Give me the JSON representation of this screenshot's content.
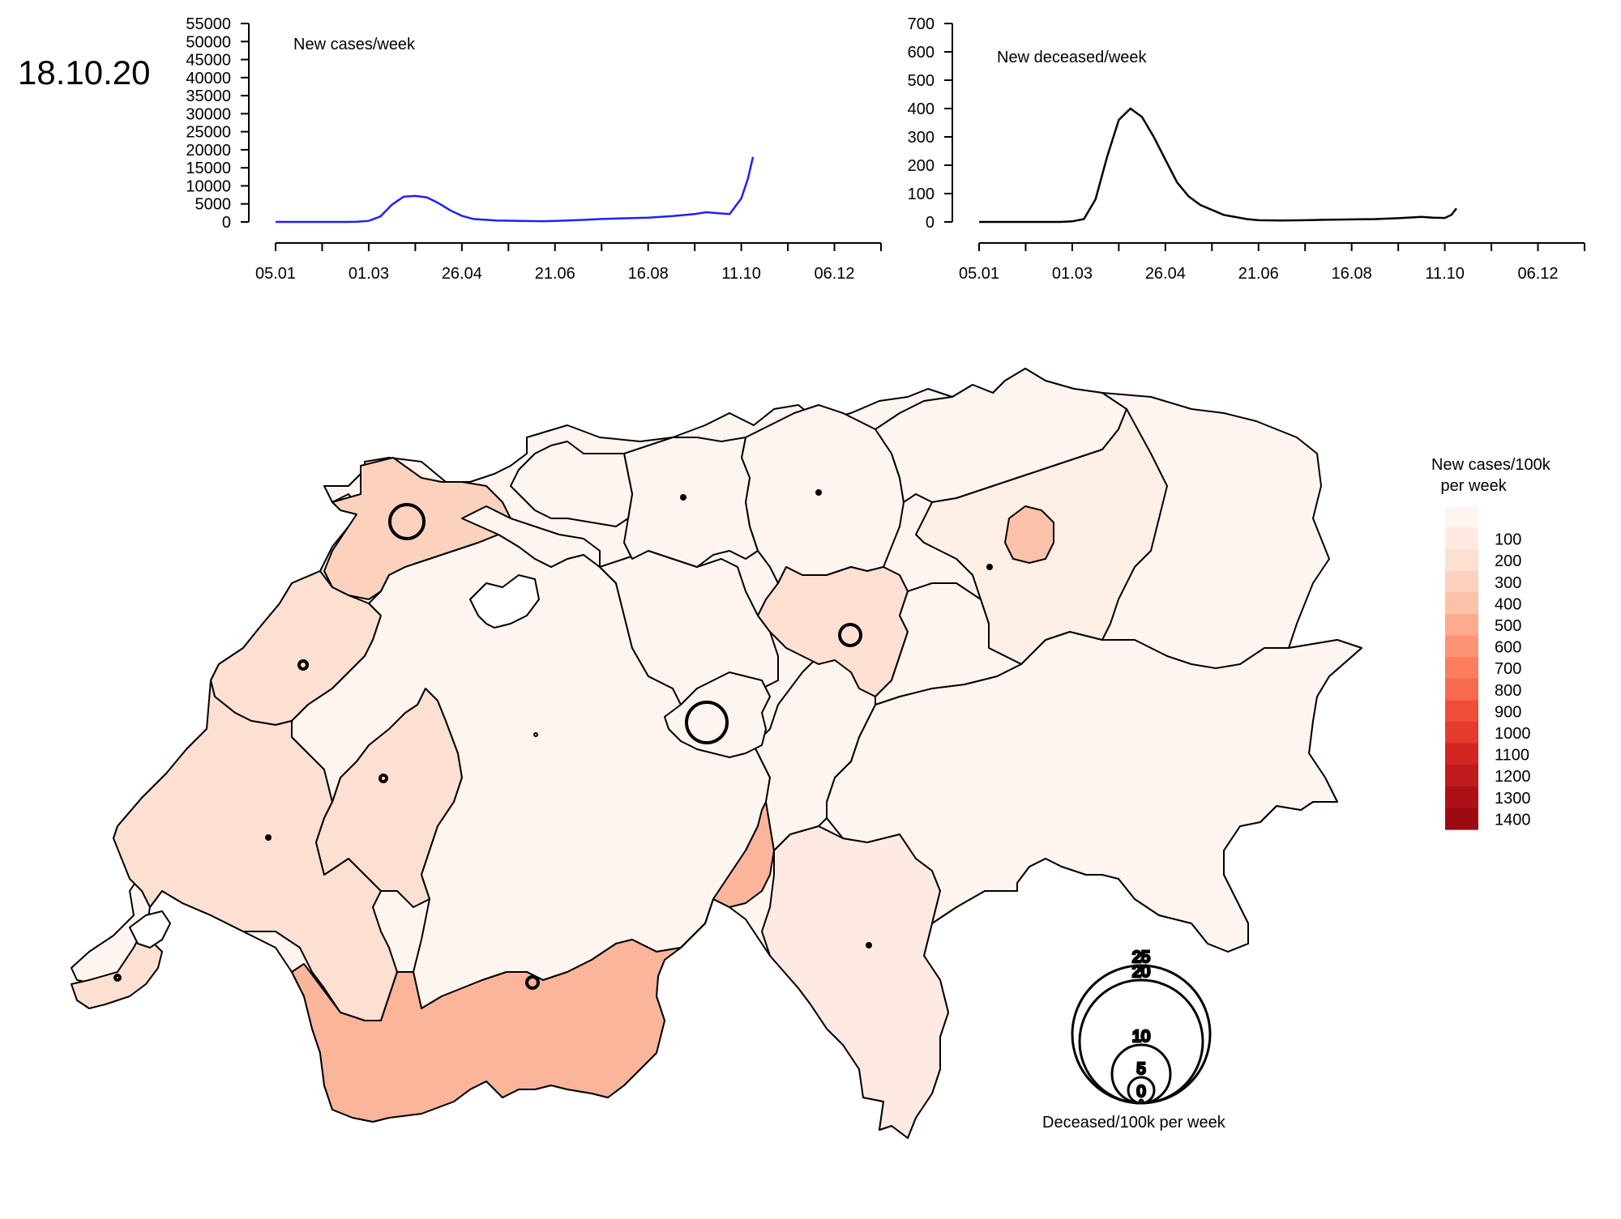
{
  "date": "18.10.20",
  "charts": [
    {
      "id": "cases",
      "title": "New cases/week",
      "line_color": "#1f1fff",
      "y_ticks": [
        0,
        5000,
        10000,
        15000,
        20000,
        25000,
        30000,
        35000,
        40000,
        45000,
        50000,
        55000
      ],
      "ylim": [
        0,
        55000
      ],
      "x_ticks": [
        "05.01",
        "01.03",
        "26.04",
        "21.06",
        "16.08",
        "11.10",
        "06.12"
      ]
    },
    {
      "id": "deaths",
      "title": "New deceased/week",
      "line_color": "#000000",
      "y_ticks": [
        0,
        100,
        200,
        300,
        400,
        500,
        600,
        700
      ],
      "ylim": [
        0,
        700
      ],
      "x_ticks": [
        "05.01",
        "01.03",
        "26.04",
        "21.06",
        "16.08",
        "11.10",
        "06.12"
      ]
    }
  ],
  "chart_data": [
    {
      "type": "line",
      "title": "New cases/week",
      "xlabel": "",
      "ylabel": "",
      "x": [
        "05.01",
        "19.01",
        "02.02",
        "16.02",
        "23.02",
        "01.03",
        "08.03",
        "15.03",
        "22.03",
        "29.03",
        "05.04",
        "12.04",
        "19.04",
        "26.04",
        "03.05",
        "17.05",
        "31.05",
        "14.06",
        "21.06",
        "05.07",
        "19.07",
        "02.08",
        "16.08",
        "30.08",
        "13.09",
        "20.09",
        "27.09",
        "04.10",
        "11.10",
        "15.10",
        "18.10"
      ],
      "series": [
        {
          "values": [
            0,
            0,
            0,
            0,
            50,
            300,
            1500,
            4800,
            7000,
            7200,
            6800,
            5200,
            3200,
            1700,
            800,
            400,
            300,
            200,
            300,
            500,
            800,
            1000,
            1200,
            1600,
            2200,
            2700,
            2400,
            2200,
            6500,
            12000,
            18000
          ]
        }
      ],
      "ylim": [
        0,
        55000
      ]
    },
    {
      "type": "line",
      "title": "New deceased/week",
      "xlabel": "",
      "ylabel": "",
      "x": [
        "05.01",
        "02.02",
        "23.02",
        "01.03",
        "08.03",
        "15.03",
        "22.03",
        "29.03",
        "05.04",
        "12.04",
        "19.04",
        "26.04",
        "03.05",
        "10.05",
        "17.05",
        "31.05",
        "14.06",
        "21.06",
        "05.07",
        "19.07",
        "02.08",
        "16.08",
        "30.08",
        "13.09",
        "27.09",
        "04.10",
        "11.10",
        "15.10",
        "18.10"
      ],
      "series": [
        {
          "values": [
            0,
            0,
            0,
            2,
            10,
            80,
            230,
            360,
            400,
            370,
            300,
            220,
            140,
            90,
            60,
            25,
            10,
            6,
            5,
            6,
            8,
            9,
            10,
            13,
            18,
            15,
            14,
            25,
            48
          ]
        }
      ],
      "ylim": [
        0,
        700
      ]
    }
  ],
  "map": {
    "legend_title_line1": "New cases/100k",
    "legend_title_line2": " per week",
    "color_scale": [
      {
        "label": "",
        "color": "#fff5f0"
      },
      {
        "label": "100",
        "color": "#feeae2"
      },
      {
        "label": "200",
        "color": "#fde0d2"
      },
      {
        "label": "300",
        "color": "#fcd2bf"
      },
      {
        "label": "400",
        "color": "#fcc2a9"
      },
      {
        "label": "500",
        "color": "#fcab8f"
      },
      {
        "label": "600",
        "color": "#fc9474"
      },
      {
        "label": "700",
        "color": "#fb7d5d"
      },
      {
        "label": "800",
        "color": "#f66b4d"
      },
      {
        "label": "900",
        "color": "#f14c36"
      },
      {
        "label": "1000",
        "color": "#e33b2e"
      },
      {
        "label": "1100",
        "color": "#d22421"
      },
      {
        "label": "1200",
        "color": "#bf1a1c"
      },
      {
        "label": "1300",
        "color": "#ad1117"
      },
      {
        "label": "1400",
        "color": "#9b0b14"
      }
    ],
    "circle_legend_title": "Deceased/100k per week",
    "circle_legend_values": [
      "25",
      "20",
      "10",
      "5",
      "0"
    ]
  }
}
